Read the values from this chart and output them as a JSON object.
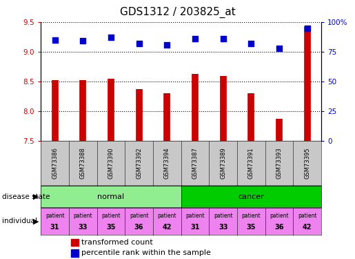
{
  "title": "GDS1312 / 203825_at",
  "samples": [
    "GSM73386",
    "GSM73388",
    "GSM73390",
    "GSM73392",
    "GSM73394",
    "GSM73387",
    "GSM73389",
    "GSM73391",
    "GSM73393",
    "GSM73395"
  ],
  "transformed_count": [
    8.53,
    8.52,
    8.55,
    8.37,
    8.3,
    8.63,
    8.6,
    8.3,
    7.87,
    9.43
  ],
  "percentile_rank": [
    85,
    84,
    87,
    82,
    81,
    86,
    86,
    82,
    78,
    95
  ],
  "disease_state": [
    "normal",
    "normal",
    "normal",
    "normal",
    "normal",
    "cancer",
    "cancer",
    "cancer",
    "cancer",
    "cancer"
  ],
  "individual": [
    31,
    33,
    35,
    36,
    42,
    31,
    33,
    35,
    36,
    42
  ],
  "ylim_left": [
    7.5,
    9.5
  ],
  "ylim_right": [
    0,
    100
  ],
  "yticks_left": [
    7.5,
    8.0,
    8.5,
    9.0,
    9.5
  ],
  "yticks_right": [
    0,
    25,
    50,
    75,
    100
  ],
  "bar_color": "#cc0000",
  "dot_color": "#0000cc",
  "normal_color": "#90ee90",
  "cancer_color": "#00cc00",
  "individual_color": "#ee82ee",
  "sample_bg_color": "#c8c8c8",
  "bar_width": 0.5,
  "dot_size": 35,
  "title_fontsize": 11,
  "tick_fontsize": 7.5,
  "annotation_fontsize": 8,
  "legend_fontsize": 8
}
